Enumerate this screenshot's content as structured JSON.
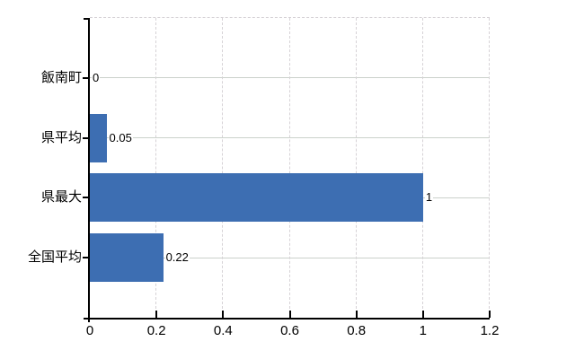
{
  "chart_data": {
    "type": "bar",
    "orientation": "horizontal",
    "title": "",
    "xlabel": "",
    "ylabel": "",
    "legend": "none",
    "grid": "on",
    "categories": [
      "飯南町",
      "県平均",
      "県最大",
      "全国平均"
    ],
    "values": [
      0,
      0.05,
      1,
      0.22
    ],
    "value_labels": [
      "0",
      "0.05",
      "1",
      "0.22"
    ],
    "xlim": [
      0,
      1.2
    ],
    "x_ticks": [
      0,
      0.2,
      0.4,
      0.6,
      0.8,
      1,
      1.2
    ],
    "x_tick_labels": [
      "0",
      "0.2",
      "0.4",
      "0.6",
      "0.8",
      "1",
      "1.2"
    ],
    "colors": {
      "bar": "#3d6eb2",
      "axis": "#000000",
      "gridline_solid": "#cbd1cb",
      "gridline_dashed": "#d6d2d6",
      "background": "#ffffff",
      "text": "#000000"
    }
  }
}
